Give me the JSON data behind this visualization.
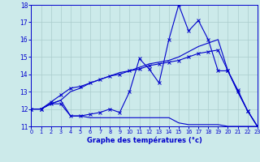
{
  "xlabel": "Graphe des températures (°c)",
  "ylim": [
    11,
    18
  ],
  "xlim": [
    0,
    23
  ],
  "yticks": [
    11,
    12,
    13,
    14,
    15,
    16,
    17,
    18
  ],
  "xticks": [
    0,
    1,
    2,
    3,
    4,
    5,
    6,
    7,
    8,
    9,
    10,
    11,
    12,
    13,
    14,
    15,
    16,
    17,
    18,
    19,
    20,
    21,
    22,
    23
  ],
  "bg_color": "#cceaea",
  "line_color": "#0000cc",
  "grid_color": "#aacccc",
  "line1_x": [
    0,
    1,
    2,
    3,
    4,
    5,
    6,
    7,
    8,
    9,
    10,
    11,
    12,
    13,
    14,
    15,
    16,
    17,
    18,
    19,
    20,
    21,
    22,
    23
  ],
  "line1_y": [
    12.0,
    12.0,
    12.3,
    12.3,
    11.6,
    11.6,
    11.7,
    11.8,
    12.0,
    11.8,
    13.0,
    14.9,
    14.3,
    13.5,
    16.0,
    18.0,
    16.5,
    17.1,
    16.0,
    14.2,
    14.2,
    13.0,
    11.9,
    11.0
  ],
  "line2_x": [
    0,
    1,
    2,
    3,
    4,
    5,
    6,
    7,
    8,
    9,
    10,
    11,
    12,
    13,
    14,
    15,
    16,
    17,
    18,
    19,
    20,
    21,
    22,
    23
  ],
  "line2_y": [
    12.0,
    12.0,
    12.4,
    12.8,
    13.2,
    13.3,
    13.5,
    13.7,
    13.9,
    14.0,
    14.2,
    14.3,
    14.5,
    14.6,
    14.7,
    14.8,
    15.0,
    15.2,
    15.3,
    15.4,
    14.2,
    13.1,
    11.9,
    11.0
  ],
  "line3_x": [
    0,
    1,
    2,
    3,
    4,
    5,
    6,
    7,
    8,
    9,
    10,
    11,
    12,
    13,
    14,
    15,
    16,
    17,
    18,
    19,
    20,
    21,
    22,
    23
  ],
  "line3_y": [
    12.0,
    12.0,
    12.3,
    12.5,
    11.6,
    11.6,
    11.5,
    11.5,
    11.5,
    11.5,
    11.5,
    11.5,
    11.5,
    11.5,
    11.5,
    11.2,
    11.1,
    11.1,
    11.1,
    11.1,
    11.0,
    11.0,
    11.0,
    11.0
  ],
  "line4_x": [
    0,
    1,
    2,
    3,
    4,
    5,
    6,
    7,
    8,
    9,
    10,
    11,
    12,
    13,
    14,
    15,
    16,
    17,
    18,
    19,
    20,
    21,
    22,
    23
  ],
  "line4_y": [
    12.0,
    12.0,
    12.3,
    12.5,
    13.0,
    13.2,
    13.5,
    13.7,
    13.9,
    14.1,
    14.2,
    14.4,
    14.6,
    14.7,
    14.8,
    15.0,
    15.3,
    15.6,
    15.8,
    16.0,
    14.2,
    13.0,
    11.9,
    11.0
  ]
}
